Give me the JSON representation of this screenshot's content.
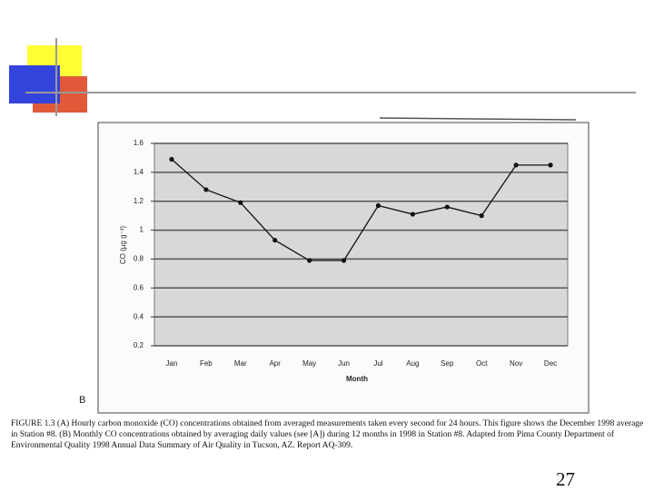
{
  "chart_data": {
    "type": "line",
    "y_label": "CO (µg g⁻³)",
    "x_label": "Month",
    "categories": [
      "Jan",
      "Feb",
      "Mar",
      "Apr",
      "May",
      "Jun",
      "Jul",
      "Aug",
      "Sep",
      "Oct",
      "Nov",
      "Dec"
    ],
    "values": [
      1.49,
      1.28,
      1.19,
      0.93,
      0.79,
      0.79,
      1.17,
      1.11,
      1.16,
      1.1,
      1.45,
      1.45
    ],
    "color": "#111111",
    "ylim": [
      0.2,
      1.6
    ],
    "yticks": [
      0.2,
      0.4,
      0.6,
      0.8,
      1,
      1.2,
      1.4,
      1.6
    ],
    "grid": true
  },
  "panel_label": "B",
  "caption": "FIGURE 1.3 (A) Hourly carbon monoxide (CO) concentrations obtained from averaged measurements taken every second for 24 hours. This figure shows the December 1998 average in Station #8. (B) Monthly CO concentrations obtained by averaging daily values (see [A]) during 12 months in 1998 in Station #8. Adapted from Pima County Department of Environmental Quality 1998 Annual Data Summary of Air Quality in Tucson, AZ. Report AQ-309.",
  "slide_number": "27"
}
